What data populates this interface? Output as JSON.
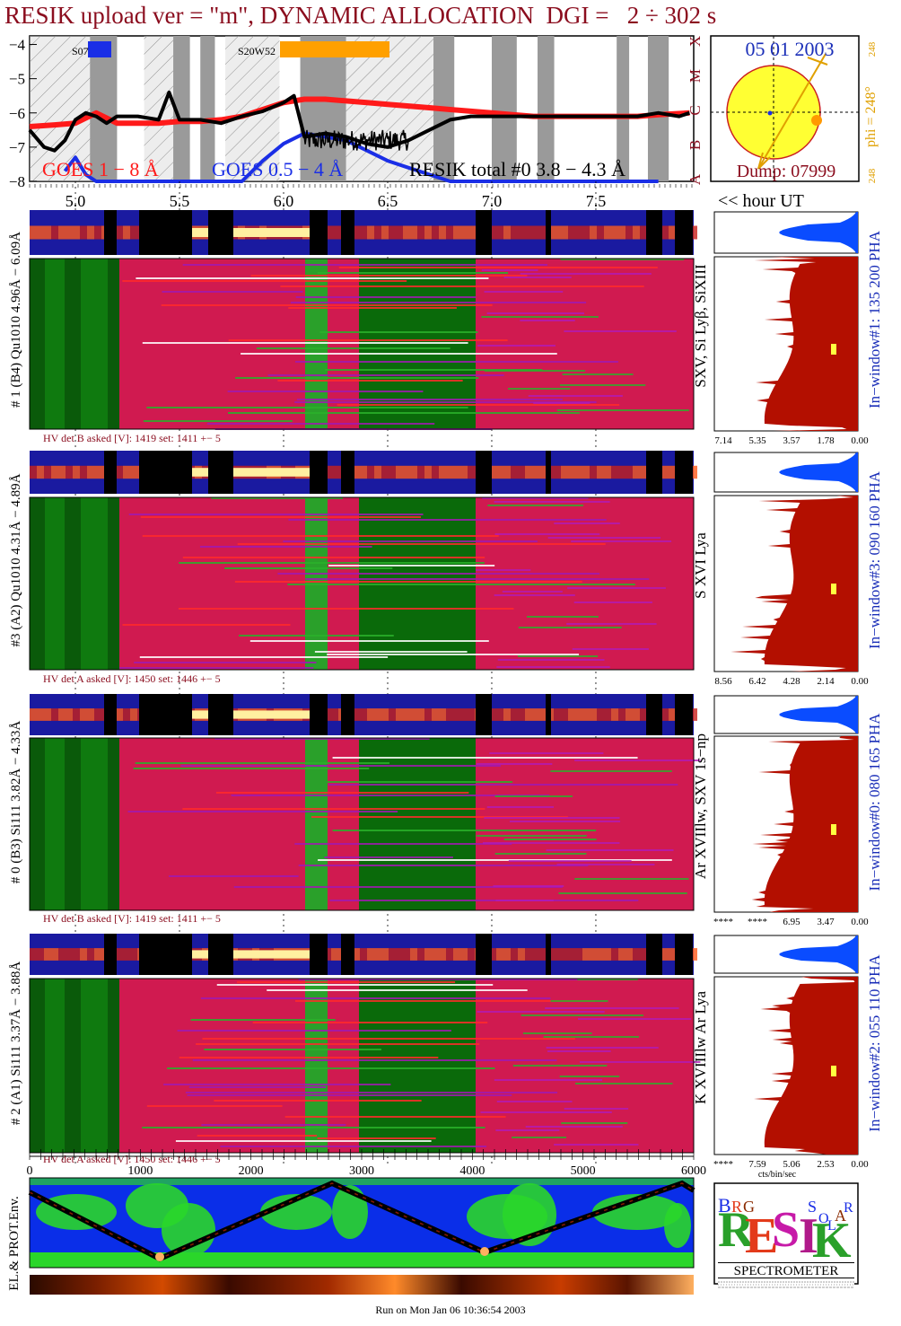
{
  "title": "RESIK upload ver = \"m\", DYNAMIC ALLOCATION  DGI =   2 ÷ 302 s",
  "footer": "Run on Mon Jan 06 10:36:54 2003",
  "colors": {
    "title": "#8b0d1e",
    "goes_long": "#ff1a1a",
    "goes_short": "#1a2ee6",
    "resik": "#000000",
    "sun": "#ffff33",
    "spectrum_fill": "#b30f00",
    "pha_fill": "#0a4cff",
    "axis_blue": "#1a2eb8",
    "orange": "#ffa000"
  },
  "goes_panel": {
    "legend_goes_long": "GOES 1 − 8 Å",
    "legend_goes_short": "GOES 0.5 − 4 Å",
    "legend_resik": "RESIK total #0  3.8 − 4.3 Å",
    "y_ticks": [
      "−4",
      "−5",
      "−6",
      "−7",
      "−8"
    ],
    "class_letters": [
      "X",
      "M",
      "C",
      "B",
      "A"
    ],
    "regions": [
      {
        "label": "S07",
        "color": "#1a2ee6"
      },
      {
        "label": "S20W52",
        "color": "#ffa000"
      }
    ]
  },
  "sun_panel": {
    "date": "05 01 2003",
    "dump": "Dump: 07999",
    "phi_label": "phi = 248°",
    "phi_top": "248",
    "phi_bottom": "248"
  },
  "hour_axis": {
    "label": "<< hour UT",
    "ticks": [
      "5.0",
      "5.5",
      "6.0",
      "6.5",
      "7.0",
      "7.5"
    ]
  },
  "detectors": [
    {
      "left_label": "# 1 (B4) Qu1010 4.96Å − 6.09Å",
      "line_label": "SXV, Si Lyβ, SiXIII",
      "window_label": "In−window#1:  135 200 PHA",
      "hv": "HV det B asked [V]:  1419 set:  1411  +−   5",
      "scale": [
        "7.14",
        "5.35",
        "3.57",
        "1.78",
        "0.00"
      ]
    },
    {
      "left_label": "#3 (A2) Qu1010  4.31Å − 4.89Å",
      "line_label": "S XVI Lya",
      "window_label": "In−window#3:  090 160 PHA",
      "hv": "HV det A asked [V]:  1450 set:  1446  +−   5",
      "scale": [
        "8.56",
        "6.42",
        "4.28",
        "2.14",
        "0.00"
      ]
    },
    {
      "left_label": "# 0 (B3) Si111  3.82Å − 4.33Å",
      "line_label": "Ar XVIIlw, SXV 1s−np",
      "window_label": "In−window#0:  080 165 PHA",
      "hv": "HV det B asked [V]:  1419 set:  1411  +−   5",
      "scale": [
        "****",
        "****",
        "6.95",
        "3.47",
        "0.00"
      ]
    },
    {
      "left_label": "# 2 (A1) Si111  3.37Å − 3.88Å",
      "line_label": "K XVIIIlw  Ar Lya",
      "window_label": "In−window#2:  055 110 PHA",
      "hv": "HV det A asked [V]:  1450 set:  1446  +−   5",
      "scale": [
        "****",
        "7.59",
        "5.06",
        "2.53",
        "0.00"
      ],
      "scale_unit": "cts/bin/sec"
    }
  ],
  "seconds_axis": {
    "ticks": [
      "0",
      "1000",
      "2000",
      "3000",
      "4000",
      "5000",
      "6000"
    ]
  },
  "env_panel": {
    "label": "EL.& PROT.Env."
  },
  "logo": {
    "letters": [
      "R",
      "E",
      "S",
      "I",
      "K"
    ],
    "small_text": [
      "B",
      "R",
      "G",
      "S",
      "O",
      "L",
      "A",
      "R"
    ],
    "caption": "SPECTROMETER"
  },
  "chart_data": {
    "type": "line",
    "title": "RESIK upload ver = \"m\", DYNAMIC ALLOCATION  DGI =   2 ÷ 302 s",
    "xlabel": "<< hour UT",
    "ylabel": "",
    "x_unit": "hour UT",
    "xlim": [
      4.78,
      7.97
    ],
    "ylim": [
      -8,
      -3.75
    ],
    "y_ticks": [
      -4,
      -5,
      -6,
      -7,
      -8
    ],
    "x_ticks": [
      5.0,
      5.5,
      6.0,
      6.5,
      7.0,
      7.5
    ],
    "grid": false,
    "legend": "bottom",
    "series": [
      {
        "name": "GOES 1 − 8 Å",
        "x": [
          4.78,
          4.9,
          5.0,
          5.1,
          5.2,
          5.3,
          5.4,
          5.5,
          5.6,
          5.7,
          5.8,
          5.9,
          6.0,
          6.1,
          6.2,
          6.3,
          6.4,
          6.5,
          6.6,
          6.7,
          6.8,
          6.9,
          7.0,
          7.1,
          7.2,
          7.3,
          7.4,
          7.5,
          7.6,
          7.7,
          7.8,
          7.95
        ],
        "y": [
          -6.4,
          -6.35,
          -6.3,
          -6.0,
          -6.3,
          -6.3,
          -6.3,
          -6.25,
          -6.25,
          -6.2,
          -6.1,
          -5.9,
          -5.7,
          -5.6,
          -5.6,
          -5.65,
          -5.7,
          -5.75,
          -5.8,
          -5.85,
          -5.9,
          -5.95,
          -6.0,
          -6.05,
          -6.1,
          -6.1,
          -6.1,
          -6.1,
          -6.1,
          -6.1,
          -6.05,
          -6.0
        ]
      },
      {
        "name": "GOES 0.5 − 4 Å",
        "x": [
          4.95,
          5.0,
          5.05,
          5.1,
          5.5,
          5.6,
          5.7,
          5.8,
          5.9,
          6.0,
          6.1,
          6.2,
          6.3,
          6.4,
          6.5,
          6.6,
          6.7,
          6.8,
          6.9,
          7.0,
          7.2,
          7.4,
          7.6,
          7.8
        ],
        "y": [
          -7.7,
          -7.3,
          -7.8,
          -8.1,
          -8.2,
          -8.3,
          -8.2,
          -8.0,
          -7.4,
          -6.9,
          -6.6,
          -6.7,
          -6.8,
          -7.1,
          -7.4,
          -7.6,
          -7.8,
          -8.0,
          -8.1,
          -8.2,
          -8.2,
          -8.2,
          -8.2,
          -8.2
        ]
      },
      {
        "name": "RESIK total #0  3.8 − 4.3 Å",
        "x": [
          4.78,
          4.85,
          4.9,
          4.95,
          5.0,
          5.05,
          5.1,
          5.15,
          5.2,
          5.3,
          5.4,
          5.45,
          5.5,
          5.55,
          5.6,
          5.7,
          5.8,
          5.9,
          6.0,
          6.05,
          6.1,
          6.2,
          6.3,
          6.4,
          6.5,
          6.6,
          6.7,
          6.8,
          6.9,
          7.0,
          7.1,
          7.2,
          7.3,
          7.4,
          7.5,
          7.6,
          7.7,
          7.8,
          7.9,
          7.95
        ],
        "y": [
          -6.5,
          -7.0,
          -7.1,
          -6.8,
          -6.2,
          -6.0,
          -6.1,
          -6.3,
          -6.1,
          -6.1,
          -6.2,
          -5.4,
          -6.2,
          -6.2,
          -6.2,
          -6.3,
          -6.1,
          -5.95,
          -5.7,
          -5.5,
          -6.7,
          -6.6,
          -6.7,
          -6.9,
          -7.0,
          -6.8,
          -6.5,
          -6.2,
          -6.1,
          -6.1,
          -6.1,
          -6.1,
          -6.1,
          -6.1,
          -6.1,
          -6.1,
          -6.1,
          -6.0,
          -6.1,
          -6.0
        ]
      }
    ]
  }
}
